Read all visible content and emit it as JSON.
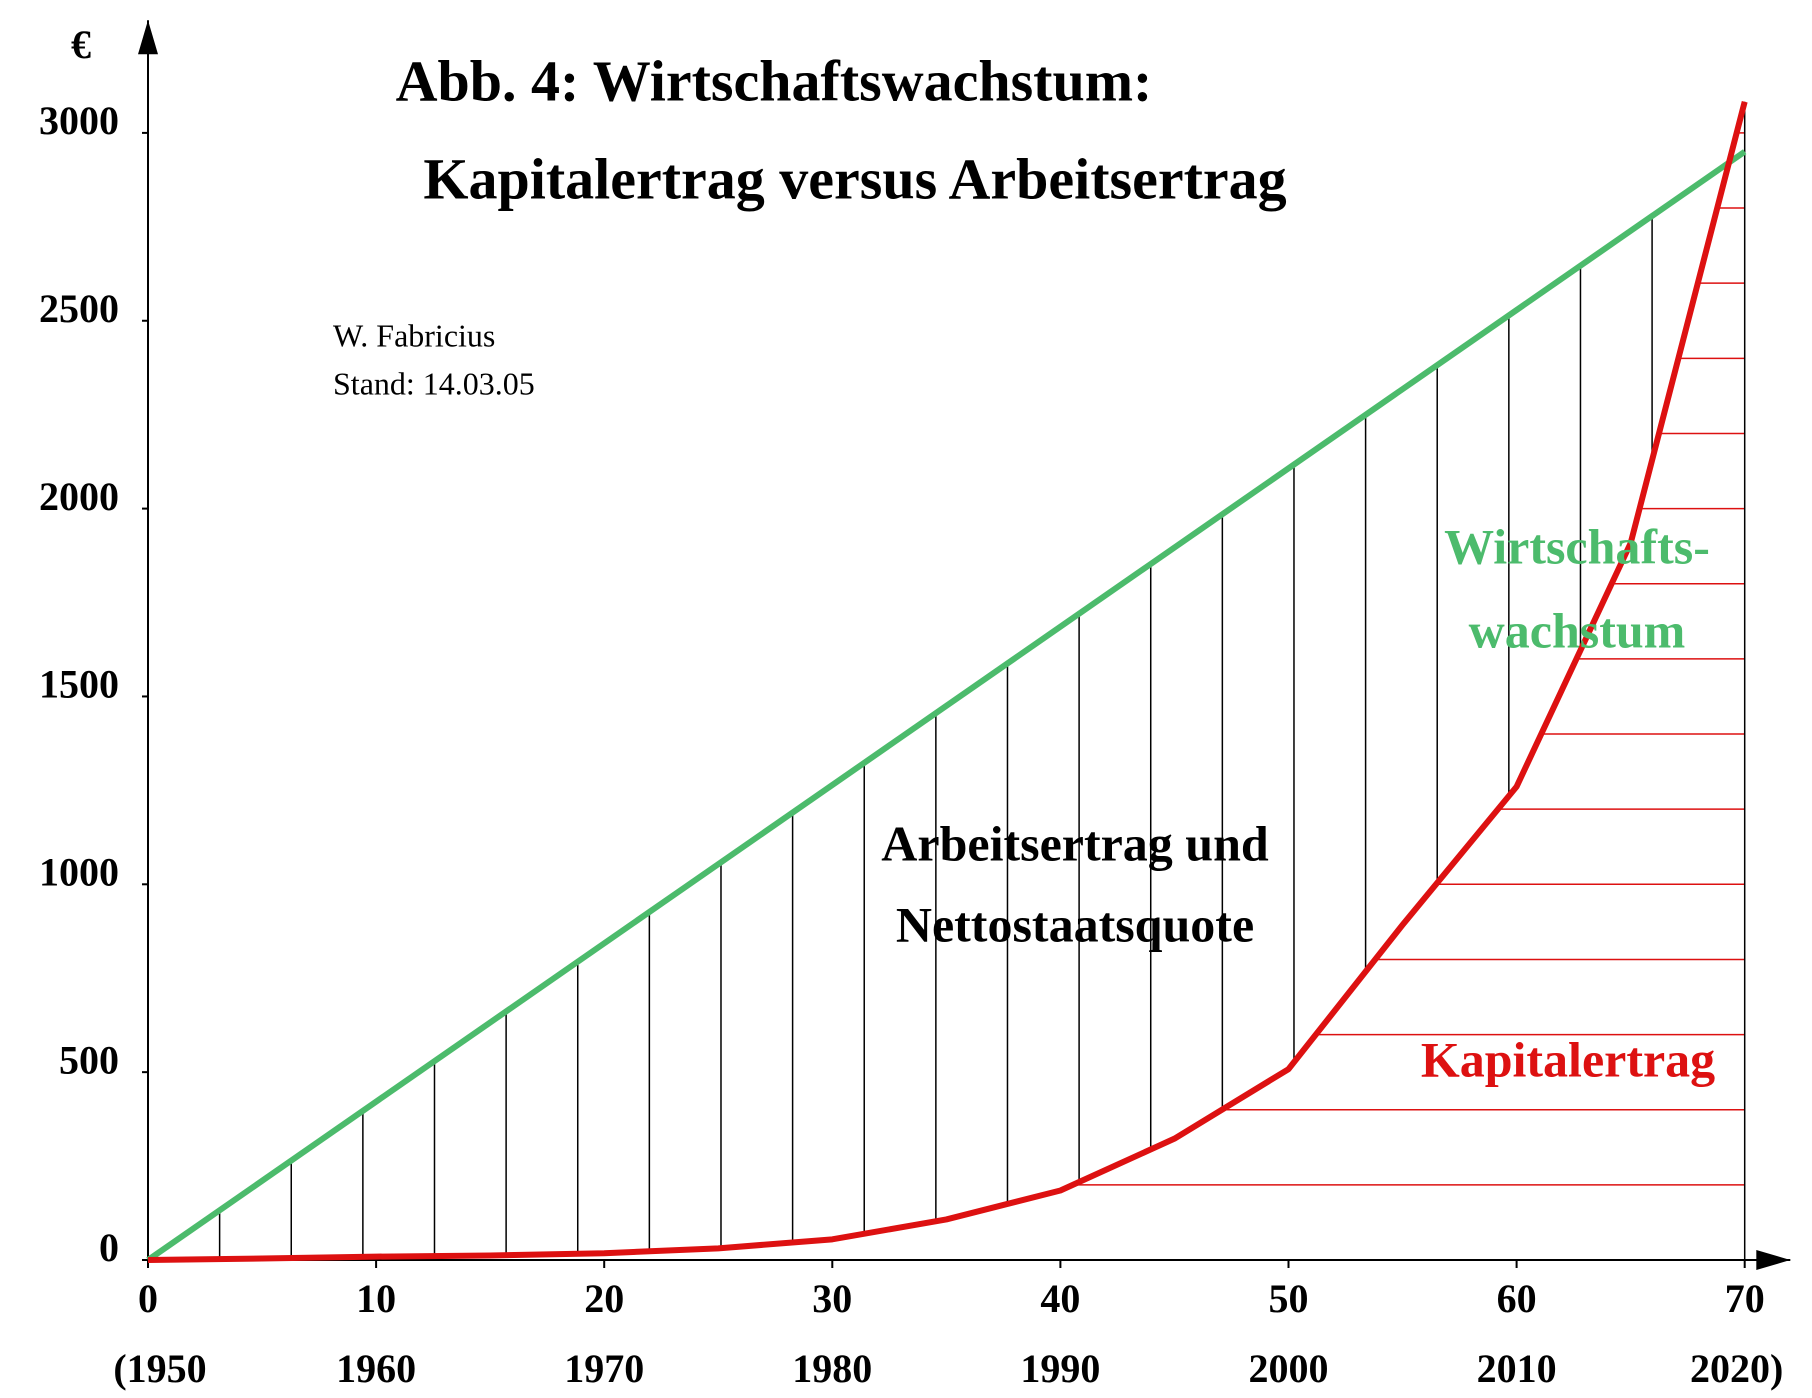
{
  "chart_data": {
    "type": "line",
    "title_lines": [
      "Abb. 4: Wirtschaftswachstum:",
      "Kapitalertrag versus Arbeitsertrag"
    ],
    "author_lines": [
      "W. Fabricius",
      "Stand: 14.03.05"
    ],
    "y_label": "€",
    "xlim": [
      0,
      72
    ],
    "ylim": [
      0,
      3300
    ],
    "xticks": [
      0,
      10,
      20,
      30,
      40,
      50,
      60,
      70
    ],
    "xtick_years": [
      "(1950",
      "1960",
      "1970",
      "1980",
      "1990",
      "2000",
      "2010",
      "2020)"
    ],
    "yticks": [
      0,
      500,
      1000,
      1500,
      2000,
      2500,
      3000
    ],
    "annotation_lines": [
      "Arbeitsertrag und",
      "Nettostaatsquote"
    ],
    "series": [
      {
        "label_lines": [
          "Wirtschafts-",
          "wachstum"
        ],
        "color": "#4cbb6c",
        "x": [
          0,
          70
        ],
        "values": [
          0,
          2950
        ]
      },
      {
        "name": "Kapitalertrag",
        "color": "#dd1111",
        "x": [
          0,
          5,
          10,
          15,
          20,
          25,
          30,
          35,
          40,
          45,
          50,
          55,
          60,
          65,
          70
        ],
        "values": [
          0,
          4,
          9,
          12,
          18,
          31,
          55,
          108,
          185,
          323,
          508,
          892,
          1260,
          1908,
          3083
        ]
      }
    ]
  }
}
